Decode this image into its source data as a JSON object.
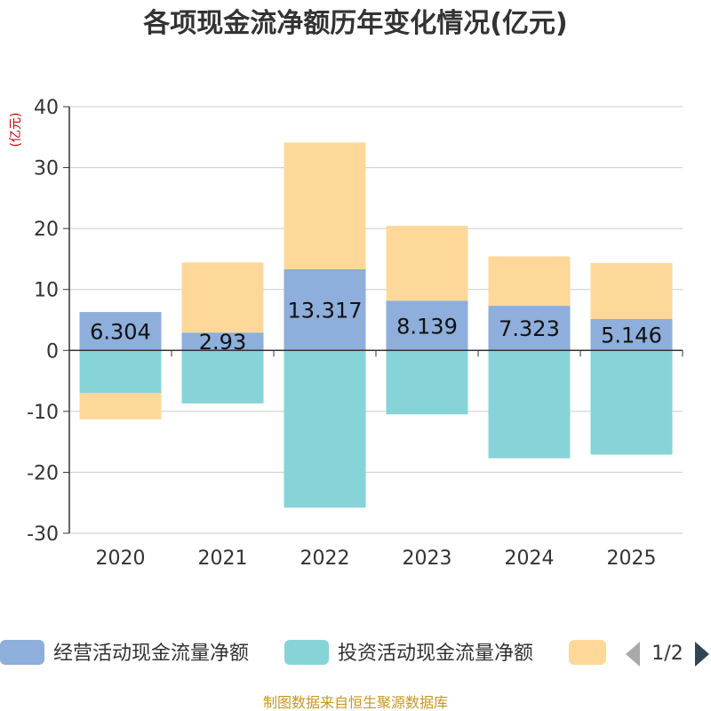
{
  "chart_data": {
    "type": "bar",
    "title": "各项现金流净额历年变化情况(亿元)",
    "ylabel": "(亿元)",
    "ylim": [
      -30,
      40
    ],
    "yticks": [
      -30,
      -20,
      -10,
      0,
      10,
      20,
      30,
      40
    ],
    "categories": [
      "2020",
      "2021",
      "2022",
      "2023",
      "2024",
      "2025"
    ],
    "series": [
      {
        "name": "经营活动现金流量净额",
        "color": "#8eaedb",
        "values": [
          6.304,
          2.93,
          13.317,
          8.139,
          7.323,
          5.146
        ],
        "labels": [
          "6.304",
          "2.93",
          "13.317",
          "8.139",
          "7.323",
          "5.146"
        ]
      },
      {
        "name": "投资活动现金流量净额",
        "color": "#86d4d8",
        "values": [
          -7.0,
          -8.7,
          -25.8,
          -10.5,
          -17.7,
          -17.1
        ]
      },
      {
        "name": "",
        "color": "#fed899",
        "values": [
          -4.3,
          11.5,
          20.8,
          12.3,
          8.1,
          9.2
        ]
      }
    ]
  },
  "legend": {
    "page_indicator": "1/2"
  },
  "source": "制图数据来自恒生聚源数据库"
}
